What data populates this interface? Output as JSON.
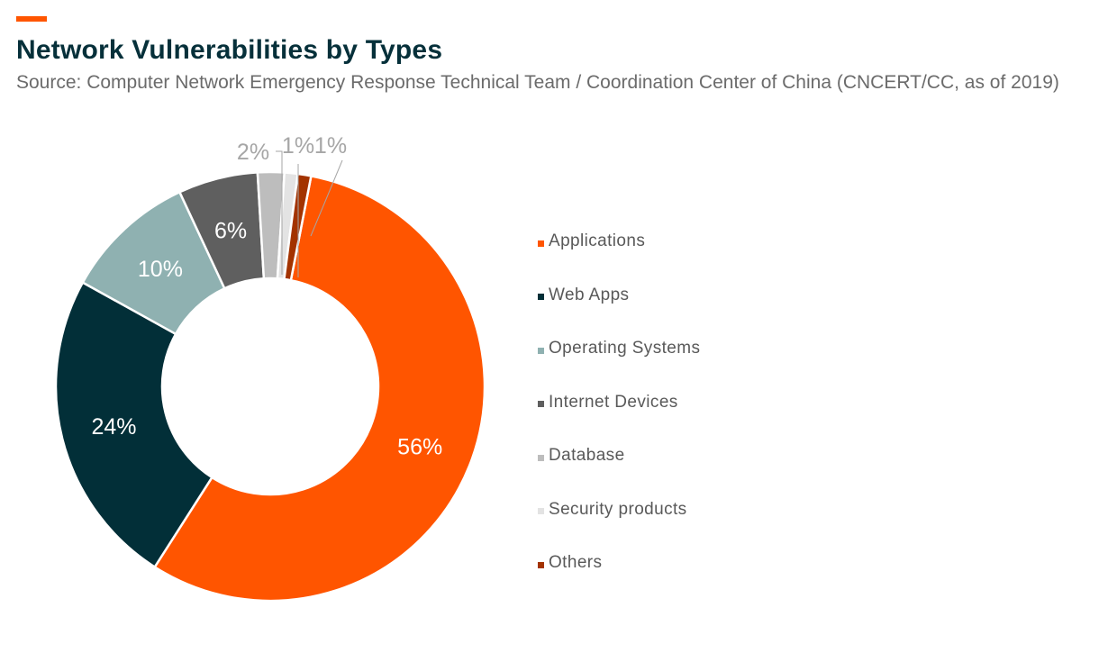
{
  "header": {
    "accent_color": "#ff5500",
    "title": "Network Vulnerabilities by Types",
    "subtitle": "Source: Computer Network Emergency Response Technical Team / Coordination Center of China (CNCERT/CC, as of 2019)"
  },
  "chart_data": {
    "type": "pie",
    "variant": "donut",
    "title": "Network Vulnerabilities by Types",
    "subtitle": "Source: Computer Network Emergency Response Technical Team / Coordination Center of China (CNCERT/CC, as of 2019)",
    "unit": "%",
    "categories": [
      "Applications",
      "Web Apps",
      "Operating Systems",
      "Internet Devices",
      "Database",
      "Security products",
      "Others"
    ],
    "values": [
      56,
      24,
      10,
      6,
      2,
      1,
      1
    ],
    "labels": [
      "56%",
      "24%",
      "10%",
      "6%",
      "2%",
      "1%",
      "1%"
    ],
    "colors": [
      "#ff5500",
      "#022f38",
      "#8fb1b1",
      "#5f5f5f",
      "#bdbdbd",
      "#e3e3e3",
      "#a33300"
    ],
    "label_placement": [
      "inside",
      "inside",
      "inside",
      "inside",
      "outside",
      "outside",
      "outside"
    ],
    "legend_position": "right",
    "start_angle_deg": 11
  }
}
